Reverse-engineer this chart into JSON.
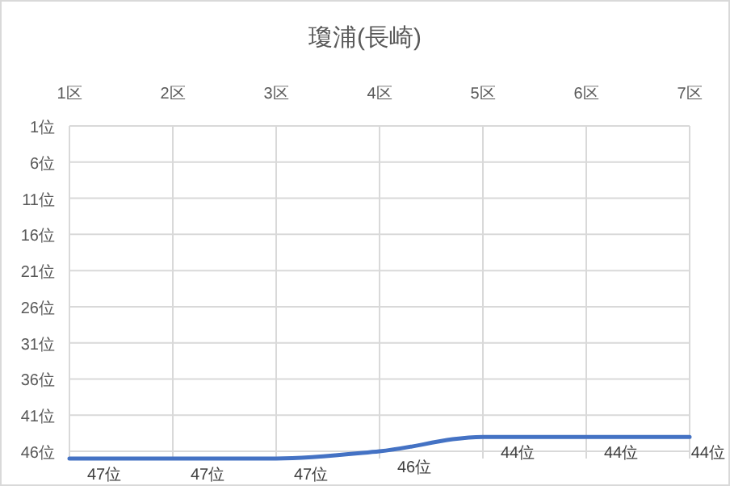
{
  "chart_data": {
    "type": "line",
    "title": "瓊浦(長崎)",
    "categories": [
      "1区",
      "2区",
      "3区",
      "4区",
      "5区",
      "6区",
      "7区"
    ],
    "series": [
      {
        "color": "#4472c4",
        "values": [
          47,
          47,
          47,
          46,
          44,
          44,
          44
        ],
        "value_labels": [
          "47位",
          "47位",
          "47位",
          "46位",
          "44位",
          "44位",
          "44位"
        ]
      }
    ],
    "ylim": [
      47,
      1
    ],
    "yticks": [
      {
        "value": 1,
        "label": "1位"
      },
      {
        "value": 6,
        "label": "6位"
      },
      {
        "value": 11,
        "label": "11位"
      },
      {
        "value": 16,
        "label": "16位"
      },
      {
        "value": 21,
        "label": "21位"
      },
      {
        "value": 26,
        "label": "26位"
      },
      {
        "value": 31,
        "label": "31位"
      },
      {
        "value": 36,
        "label": "36位"
      },
      {
        "value": 41,
        "label": "41位"
      },
      {
        "value": 46,
        "label": "46位"
      }
    ],
    "grid": true,
    "marker": "none",
    "line_style": "solid"
  }
}
